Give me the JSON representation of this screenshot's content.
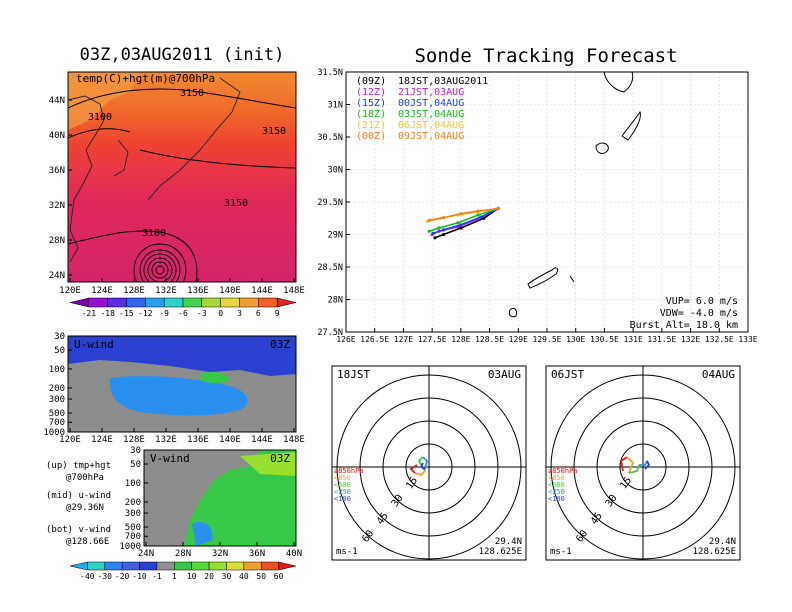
{
  "left_panel": {
    "title": "03Z,03AUG2011 (init)",
    "label": "temp(C)+hgt(m)@700hPa",
    "lat_ticks": [
      "44N",
      "40N",
      "36N",
      "32N",
      "28N",
      "24N"
    ],
    "lon_ticks": [
      "120E",
      "124E",
      "128E",
      "132E",
      "136E",
      "140E",
      "144E",
      "148E"
    ],
    "contours": [
      "3150",
      "3100",
      "3150",
      "3150",
      "3100"
    ],
    "colorbar_labels": [
      "-21",
      "-18",
      "-15",
      "-12",
      "-9",
      "-6",
      "-3",
      "0",
      "3",
      "6",
      "9"
    ],
    "colorbar_colors": [
      "#7b00a8",
      "#9b10d0",
      "#5a2de0",
      "#2f67f2",
      "#2aa0e8",
      "#2fd0c8",
      "#46d24c",
      "#a8d83a",
      "#e8d63a",
      "#f0a030",
      "#f06028",
      "#e0202a"
    ]
  },
  "uwind_panel": {
    "label": "U-wind",
    "time": "03Z",
    "y_ticks": [
      "30",
      "50",
      "100",
      "200",
      "300",
      "500",
      "700",
      "1000"
    ],
    "x_ticks": [
      "120E",
      "124E",
      "128E",
      "132E",
      "136E",
      "140E",
      "144E",
      "148E"
    ]
  },
  "vwind_panel": {
    "label": "V-wind",
    "time": "03Z",
    "y_ticks": [
      "30",
      "50",
      "100",
      "200",
      "300",
      "500",
      "700",
      "1000"
    ],
    "x_ticks": [
      "24N",
      "28N",
      "32N",
      "36N",
      "40N"
    ],
    "wind_colorbar_labels": [
      "-40",
      "-30",
      "-20",
      "-10",
      "-1",
      "1",
      "10",
      "20",
      "30",
      "40",
      "50",
      "60"
    ],
    "wind_colorbar_colors": [
      "#18b0e8",
      "#2fd0c8",
      "#3080f0",
      "#4060e0",
      "#2a40d0",
      "#909090",
      "#38c848",
      "#58d838",
      "#98e030",
      "#d8e030",
      "#f0a030",
      "#e85028",
      "#e01818"
    ]
  },
  "legend_left": {
    "items": [
      {
        "line1": "(up) tmp+hgt",
        "line2": "@700hPa"
      },
      {
        "line1": "(mid) u-wind",
        "line2": "@29.36N"
      },
      {
        "line1": "(bot) v-wind",
        "line2": "@128.66E"
      }
    ]
  },
  "right_panel": {
    "title": "Sonde Tracking Forecast",
    "lat_ticks": [
      "31.5N",
      "31N",
      "30.5N",
      "30N",
      "29.5N",
      "29N",
      "28.5N",
      "28N",
      "27.5N"
    ],
    "lon_ticks": [
      "126E",
      "126.5E",
      "127E",
      "127.5E",
      "128E",
      "128.5E",
      "129E",
      "129.5E",
      "130E",
      "130.5E",
      "131E",
      "131.5E",
      "132E",
      "132.5E",
      "133E"
    ],
    "legend": [
      {
        "utc": "(09Z)",
        "jst": "18JST,03AUG2011",
        "color": "#000000"
      },
      {
        "utc": "(12Z)",
        "jst": "21JST,03AUG",
        "color": "#c020c0"
      },
      {
        "utc": "(15Z)",
        "jst": "00JST,04AUG",
        "color": "#1e3cff"
      },
      {
        "utc": "(18Z)",
        "jst": "03JST,04AUG",
        "color": "#18b818"
      },
      {
        "utc": "(21Z)",
        "jst": "06JST,04AUG",
        "color": "#f0c828"
      },
      {
        "utc": "(00Z)",
        "jst": "09JST,04AUG",
        "color": "#f08020"
      }
    ],
    "params": {
      "vup": "VUP=  6.0  m/s",
      "vdw": "VDW= -4.0  m/s",
      "burst": "Burst Alt= 18.0  km"
    }
  },
  "hodo_left": {
    "time": "18JST",
    "date": "03AUG",
    "ring_labels": [
      "15",
      "30",
      "45",
      "60"
    ],
    "levels": [
      "≥850hPa",
      "<850",
      "<500",
      "<250",
      "<100"
    ],
    "level_colors": [
      "#e01818",
      "#f0a030",
      "#48c838",
      "#2a90f0",
      "#2a40d0"
    ],
    "lat": "29.4N",
    "lon": "128.625E",
    "unit": "ms-1"
  },
  "hodo_right": {
    "time": "06JST",
    "date": "04AUG",
    "ring_labels": [
      "15",
      "30",
      "45",
      "60"
    ],
    "levels": [
      "≥850hPa",
      "<850",
      "<500",
      "<250",
      "<100"
    ],
    "level_colors": [
      "#e01818",
      "#f0a030",
      "#48c838",
      "#2a90f0",
      "#2a40d0"
    ],
    "lat": "29.4N",
    "lon": "128.625E",
    "unit": "ms-1"
  },
  "chart_data": {
    "type": "line",
    "title": "Sonde Tracking Forecast",
    "xlabel": "",
    "ylabel": "",
    "xlim": [
      126,
      133
    ],
    "ylim": [
      27.5,
      31.5
    ],
    "series": [
      {
        "name": "(09Z) 18JST,03AUG2011",
        "x": [
          128.65,
          128.4,
          128.0,
          127.7,
          127.55
        ],
        "y": [
          29.4,
          29.25,
          29.1,
          29.0,
          28.95
        ]
      },
      {
        "name": "(12Z) 21JST,03AUG",
        "x": [
          128.65,
          128.3,
          127.95,
          127.62,
          127.5
        ],
        "y": [
          29.4,
          29.24,
          29.12,
          29.05,
          29.0
        ]
      },
      {
        "name": "(15Z) 00JST,04AUG",
        "x": [
          128.65,
          128.35,
          128.0,
          127.7,
          127.52
        ],
        "y": [
          29.4,
          29.27,
          29.15,
          29.07,
          29.02
        ]
      },
      {
        "name": "(18Z) 03JST,04AUG",
        "x": [
          128.65,
          128.3,
          127.95,
          127.62,
          127.45
        ],
        "y": [
          29.4,
          29.3,
          29.18,
          29.1,
          29.05
        ]
      },
      {
        "name": "(21Z) 06JST,04AUG",
        "x": [
          128.65,
          128.3,
          127.95,
          127.65,
          127.42
        ],
        "y": [
          29.4,
          29.35,
          29.3,
          29.25,
          29.2
        ]
      },
      {
        "name": "(00Z) 09JST,04AUG",
        "x": [
          128.65,
          128.3,
          128.0,
          127.7,
          127.45
        ],
        "y": [
          29.4,
          29.36,
          29.32,
          29.26,
          29.22
        ]
      }
    ]
  }
}
